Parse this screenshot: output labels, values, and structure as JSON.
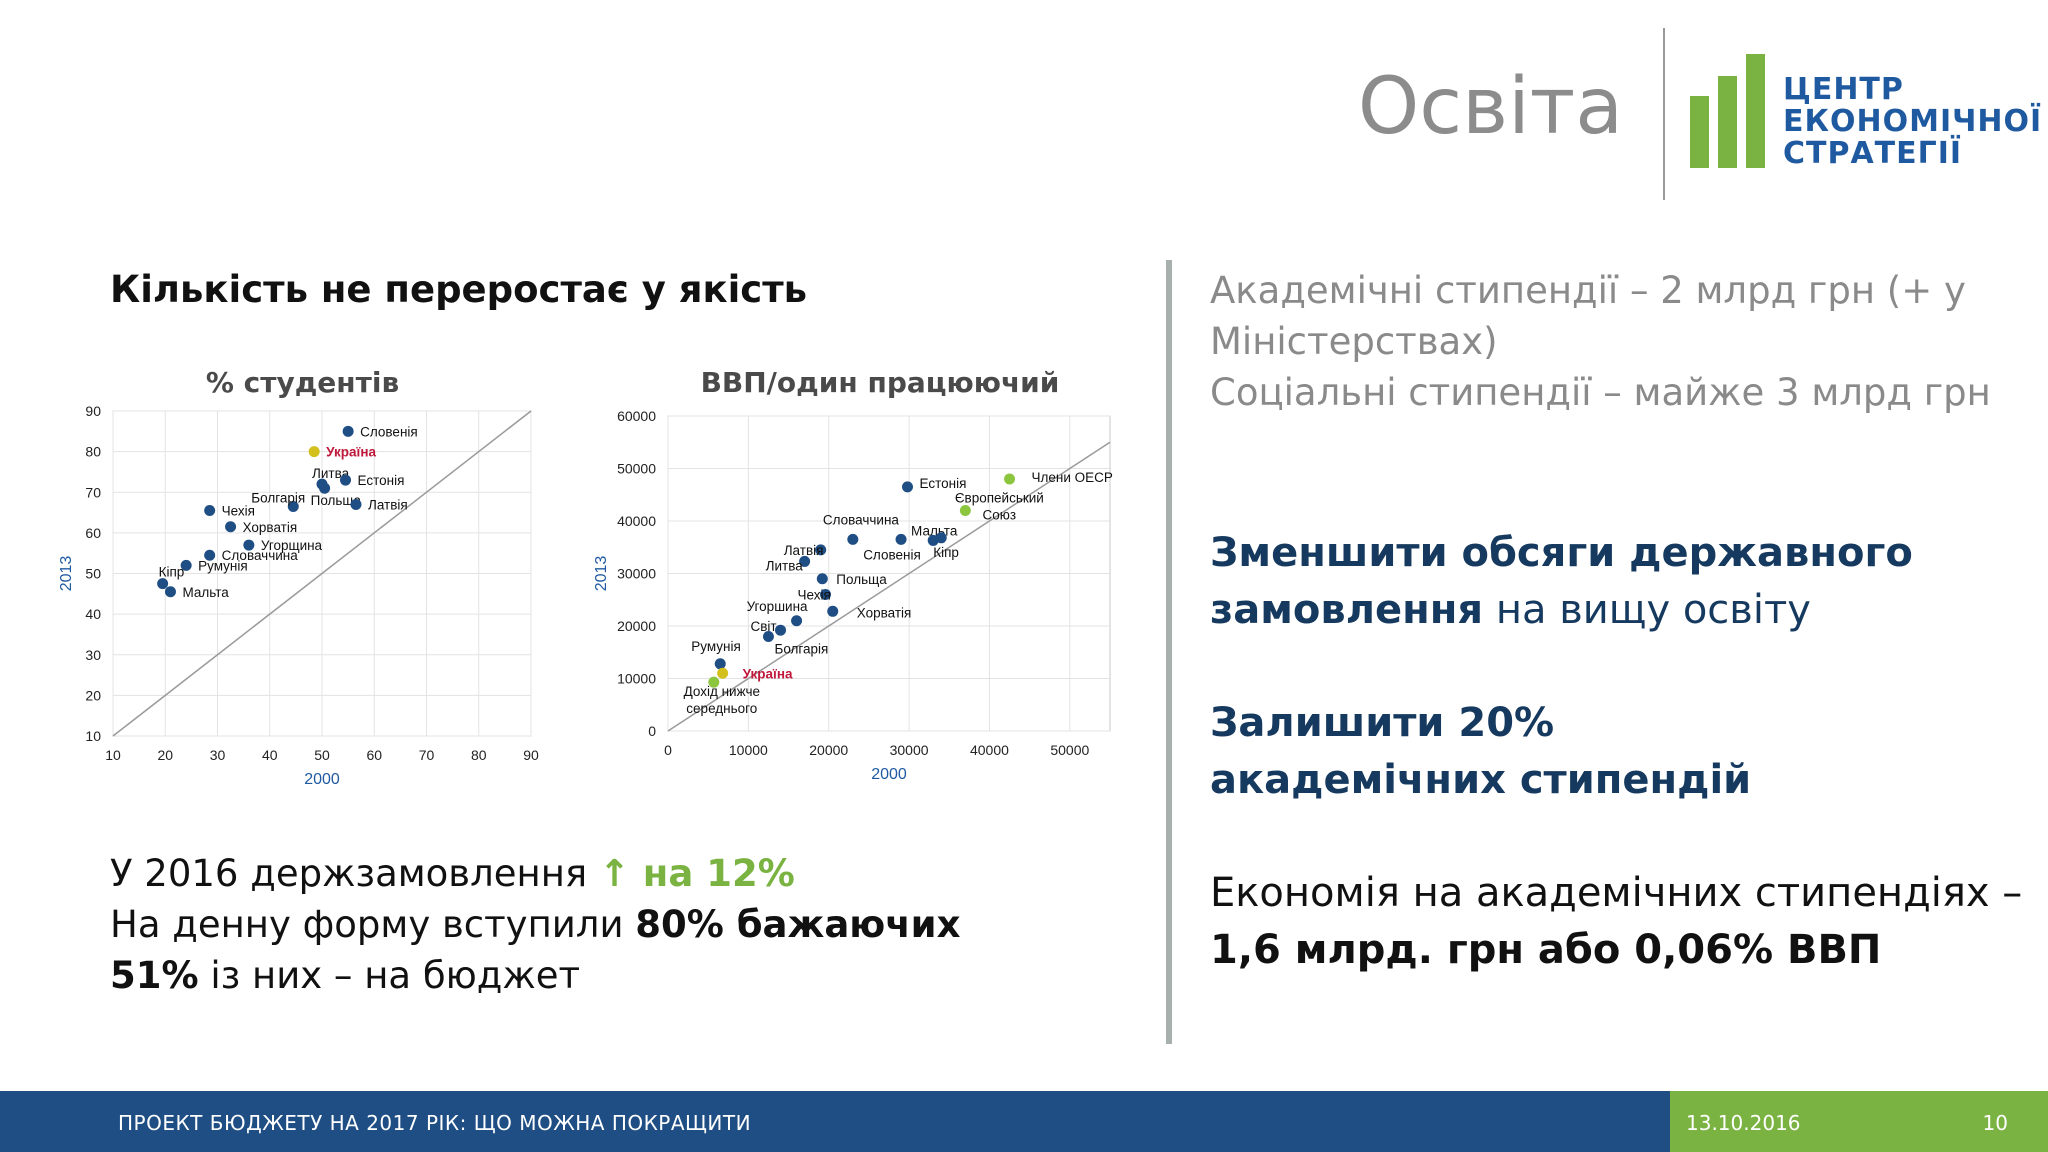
{
  "header": {
    "title": "Освіта",
    "logo_lines": [
      "ЦЕНТР",
      "ЕКОНОМІЧНОЇ",
      "СТРАТЕГІЇ"
    ],
    "logo_color": "#7ab342",
    "logo_text_color": "#1f5aa1"
  },
  "section_heading": "Кількість не переростає у якість",
  "left_stats": {
    "line1_text": "У 2016 держзамовлення ",
    "line1_highlight": "↑ на 12%",
    "line2_text": "На денну форму вступили ",
    "line2_bold": "80% бажаючих",
    "line3_bold": "51%",
    "line3_text": " із них – на бюджет"
  },
  "right": {
    "gray_line1": "Академічні стипендії – 2 млрд грн (+ у Міністерствах)",
    "gray_line2": "Соціальні стипендії – майже 3 млрд грн",
    "rec1_bold": "Зменшити обсяги державного замовлення",
    "rec1_text": " на вищу освіту",
    "rec2_bold": "Залишити 20% академічних стипендій",
    "econ_text": "Економія на академічних стипендіях – ",
    "econ_bold": "1,6 млрд. грн або 0,06% ВВП"
  },
  "footer": {
    "title": "ПРОЕКТ БЮДЖЕТУ НА 2017 РІК: ЩО МОЖНА ПОКРАЩИТИ",
    "date": "13.10.2016",
    "page": "10"
  },
  "chart_data": [
    {
      "type": "scatter",
      "title": "% студентів",
      "xlabel": "2000",
      "ylabel": "2013",
      "xlim": [
        10,
        90
      ],
      "ylim": [
        10,
        90
      ],
      "xticks": [
        10,
        20,
        30,
        40,
        50,
        60,
        70,
        80,
        90
      ],
      "yticks": [
        10,
        20,
        30,
        40,
        50,
        60,
        70,
        80,
        90
      ],
      "grid": true,
      "diagonal": true,
      "colors": {
        "point": "#1f4e84",
        "highlight": "#d4c01c",
        "highlight_label": "#c0183a",
        "grid": "#e3e3e3"
      },
      "points": [
        {
          "label": "Словенія",
          "x": 55,
          "y": 85,
          "lx": 4,
          "ly": 0
        },
        {
          "label": "Україна",
          "x": 48.5,
          "y": 80,
          "highlight": true,
          "lx": 4,
          "ly": 0
        },
        {
          "label": "Литва",
          "x": 50,
          "y": 72,
          "lx": -18,
          "ly": -11
        },
        {
          "label": "Естонія",
          "x": 54.5,
          "y": 73,
          "lx": 4,
          "ly": 0
        },
        {
          "label": "Польща",
          "x": 50.5,
          "y": 71,
          "lx": -22,
          "ly": 12
        },
        {
          "label": "Латвія",
          "x": 56.5,
          "y": 67,
          "lx": 4,
          "ly": 0
        },
        {
          "label": "Болгарія",
          "x": 44.5,
          "y": 66.5,
          "lx": -50,
          "ly": -9
        },
        {
          "label": "Чехія",
          "x": 28.5,
          "y": 65.5,
          "lx": 4,
          "ly": 0
        },
        {
          "label": "Хорватія",
          "x": 32.5,
          "y": 61.5,
          "lx": 4,
          "ly": 0
        },
        {
          "label": "Угорщина",
          "x": 36,
          "y": 57,
          "lx": 4,
          "ly": 0
        },
        {
          "label": "Словаччина",
          "x": 28.5,
          "y": 54.5,
          "lx": 4,
          "ly": 0
        },
        {
          "label": "Румунія",
          "x": 24,
          "y": 52,
          "lx": 4,
          "ly": 0
        },
        {
          "label": "Кіпр",
          "x": 19.5,
          "y": 47.5,
          "lx": -12,
          "ly": -12
        },
        {
          "label": "Мальта",
          "x": 21,
          "y": 45.5,
          "lx": 4,
          "ly": 0
        }
      ]
    },
    {
      "type": "scatter",
      "title": "ВВП/один працюючий",
      "xlabel": "2000",
      "ylabel": "2013",
      "xlim": [
        0,
        55000
      ],
      "ylim": [
        0,
        60000
      ],
      "xticks": [
        0,
        10000,
        20000,
        30000,
        40000,
        50000
      ],
      "yticks": [
        0,
        10000,
        20000,
        30000,
        40000,
        50000,
        60000
      ],
      "grid": true,
      "diagonal": true,
      "colors": {
        "point": "#1f4e84",
        "highlight": "#d4c01c",
        "green": "#8cc63f",
        "highlight_label": "#c0183a",
        "grid": "#e3e3e3"
      },
      "points": [
        {
          "label": "Естонія",
          "x": 29800,
          "y": 46500,
          "lx": 4,
          "ly": -4
        },
        {
          "label": "Члени ОЕСР",
          "x": 42500,
          "y": 48000,
          "green": true,
          "lx": 14,
          "ly": -2
        },
        {
          "label": "Європейський Союз",
          "x": 37000,
          "y": 42000,
          "green": true,
          "lx": 28,
          "ly": -8
        },
        {
          "label": "Словаччина",
          "x": 23000,
          "y": 36500,
          "lx": -38,
          "ly": -20
        },
        {
          "label": "Мальта",
          "x": 29000,
          "y": 36500,
          "lx": 2,
          "ly": -9
        },
        {
          "label": "Словенія",
          "x": 33000,
          "y": 36300,
          "lx": -78,
          "ly": 14
        },
        {
          "label": "Кіпр",
          "x": 34000,
          "y": 36800,
          "lx": -16,
          "ly": 14
        },
        {
          "label": "Латвія",
          "x": 19000,
          "y": 34500,
          "lx": -45,
          "ly": 0
        },
        {
          "label": "Литва",
          "x": 17000,
          "y": 32300,
          "lx": -47,
          "ly": 4
        },
        {
          "label": "Польща",
          "x": 19200,
          "y": 29000,
          "lx": 6,
          "ly": 0
        },
        {
          "label": "Чехія",
          "x": 19600,
          "y": 26000,
          "lx": -36,
          "ly": 0
        },
        {
          "label": "Угоршина",
          "x": 16000,
          "y": 21000,
          "lx": -58,
          "ly": -15
        },
        {
          "label": "Хорватія",
          "x": 20500,
          "y": 22800,
          "lx": 16,
          "ly": 1
        },
        {
          "label": "Світ",
          "x": 14000,
          "y": 19200,
          "lx": -38,
          "ly": -4
        },
        {
          "label": "Болгарія",
          "x": 12500,
          "y": 18000,
          "lx": -2,
          "ly": 12
        },
        {
          "label": "Румунія",
          "x": 6500,
          "y": 12800,
          "lx": -37,
          "ly": -18
        },
        {
          "label": "Україна",
          "x": 6800,
          "y": 11000,
          "highlight": true,
          "lx": 12,
          "ly": 0
        },
        {
          "label": "Дохід нижче середнього",
          "x": 5700,
          "y": 9300,
          "green": true,
          "lx": 2,
          "ly": 14
        }
      ]
    }
  ]
}
